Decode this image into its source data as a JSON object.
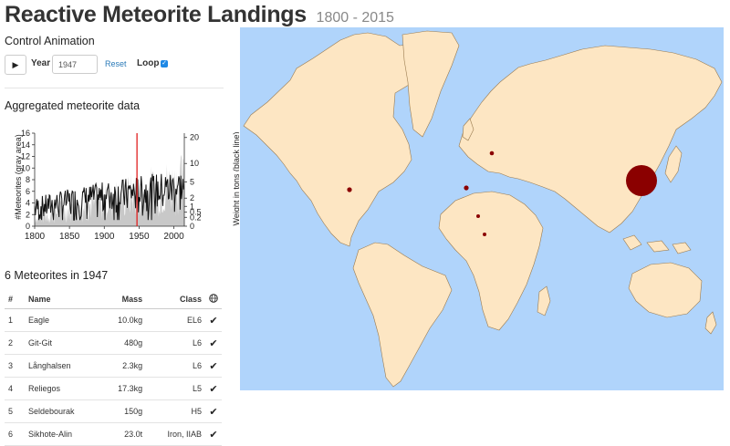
{
  "header": {
    "title": "Reactive Meteorite Landings",
    "subtitle": "1800 - 2015"
  },
  "controls": {
    "heading": "Control Animation",
    "play_glyph": "▶",
    "year_label": "Year",
    "year_value": "1947",
    "reset_label": "Reset",
    "loop_label": "Loop",
    "loop_checked": true
  },
  "aggregated": {
    "heading": "Aggregated meteorite data"
  },
  "chart_data": {
    "type": "area",
    "xlim": [
      1800,
      2015
    ],
    "x_ticks": [
      "1800",
      "1850",
      "1900",
      "1950",
      "2000"
    ],
    "left_axis": {
      "label": "#Meteorites (gray area)",
      "ticks": [
        "0",
        "2",
        "4",
        "6",
        "8",
        "10",
        "12",
        "14",
        "16"
      ],
      "lim": [
        0,
        16
      ]
    },
    "right_axis": {
      "label": "Weight in tons (black line)",
      "ticks": [
        "0",
        "0.2",
        "0.5",
        "1",
        "2",
        "5",
        "10",
        "20"
      ],
      "scale": "sqrt"
    },
    "marker_year": 1947,
    "colors": {
      "area": "#c8c8c8",
      "line": "#111111",
      "marker": "#e02020"
    }
  },
  "list": {
    "heading": "6 Meteorites in 1947",
    "columns": [
      "#",
      "Name",
      "Mass",
      "Class"
    ],
    "globe_icon": "globe-icon",
    "rows": [
      {
        "n": "1",
        "name": "Eagle",
        "mass": "10.0kg",
        "cls": "EL6",
        "check": "✔"
      },
      {
        "n": "2",
        "name": "Git-Git",
        "mass": "480g",
        "cls": "L6",
        "check": "✔"
      },
      {
        "n": "3",
        "name": "Långhalsen",
        "mass": "2.3kg",
        "cls": "L6",
        "check": "✔"
      },
      {
        "n": "4",
        "name": "Reliegos",
        "mass": "17.3kg",
        "cls": "L5",
        "check": "✔"
      },
      {
        "n": "5",
        "name": "Seldebourak",
        "mass": "150g",
        "cls": "H5",
        "check": "✔"
      },
      {
        "n": "6",
        "name": "Sikhote-Alin",
        "mass": "23.0t",
        "cls": "Iron, IIAB",
        "check": "✔"
      }
    ]
  },
  "map": {
    "ocean_color": "#b0d4fb",
    "land_color": "#fde6c3",
    "marker_color": "#8b0000",
    "markers": [
      {
        "name": "Eagle",
        "lon": -96,
        "lat": 40,
        "mass_kg": 10
      },
      {
        "name": "Git-Git",
        "lon": 10,
        "lat": 10,
        "mass_kg": 0.48
      },
      {
        "name": "Långhalsen",
        "lon": 17,
        "lat": 59,
        "mass_kg": 2.3
      },
      {
        "name": "Reliegos",
        "lon": -5,
        "lat": 42.5,
        "mass_kg": 17.3
      },
      {
        "name": "Seldebourak",
        "lon": 3,
        "lat": 16,
        "mass_kg": 0.15
      },
      {
        "name": "Sikhote-Alin",
        "lon": 134,
        "lat": 46,
        "mass_kg": 23000
      }
    ]
  }
}
